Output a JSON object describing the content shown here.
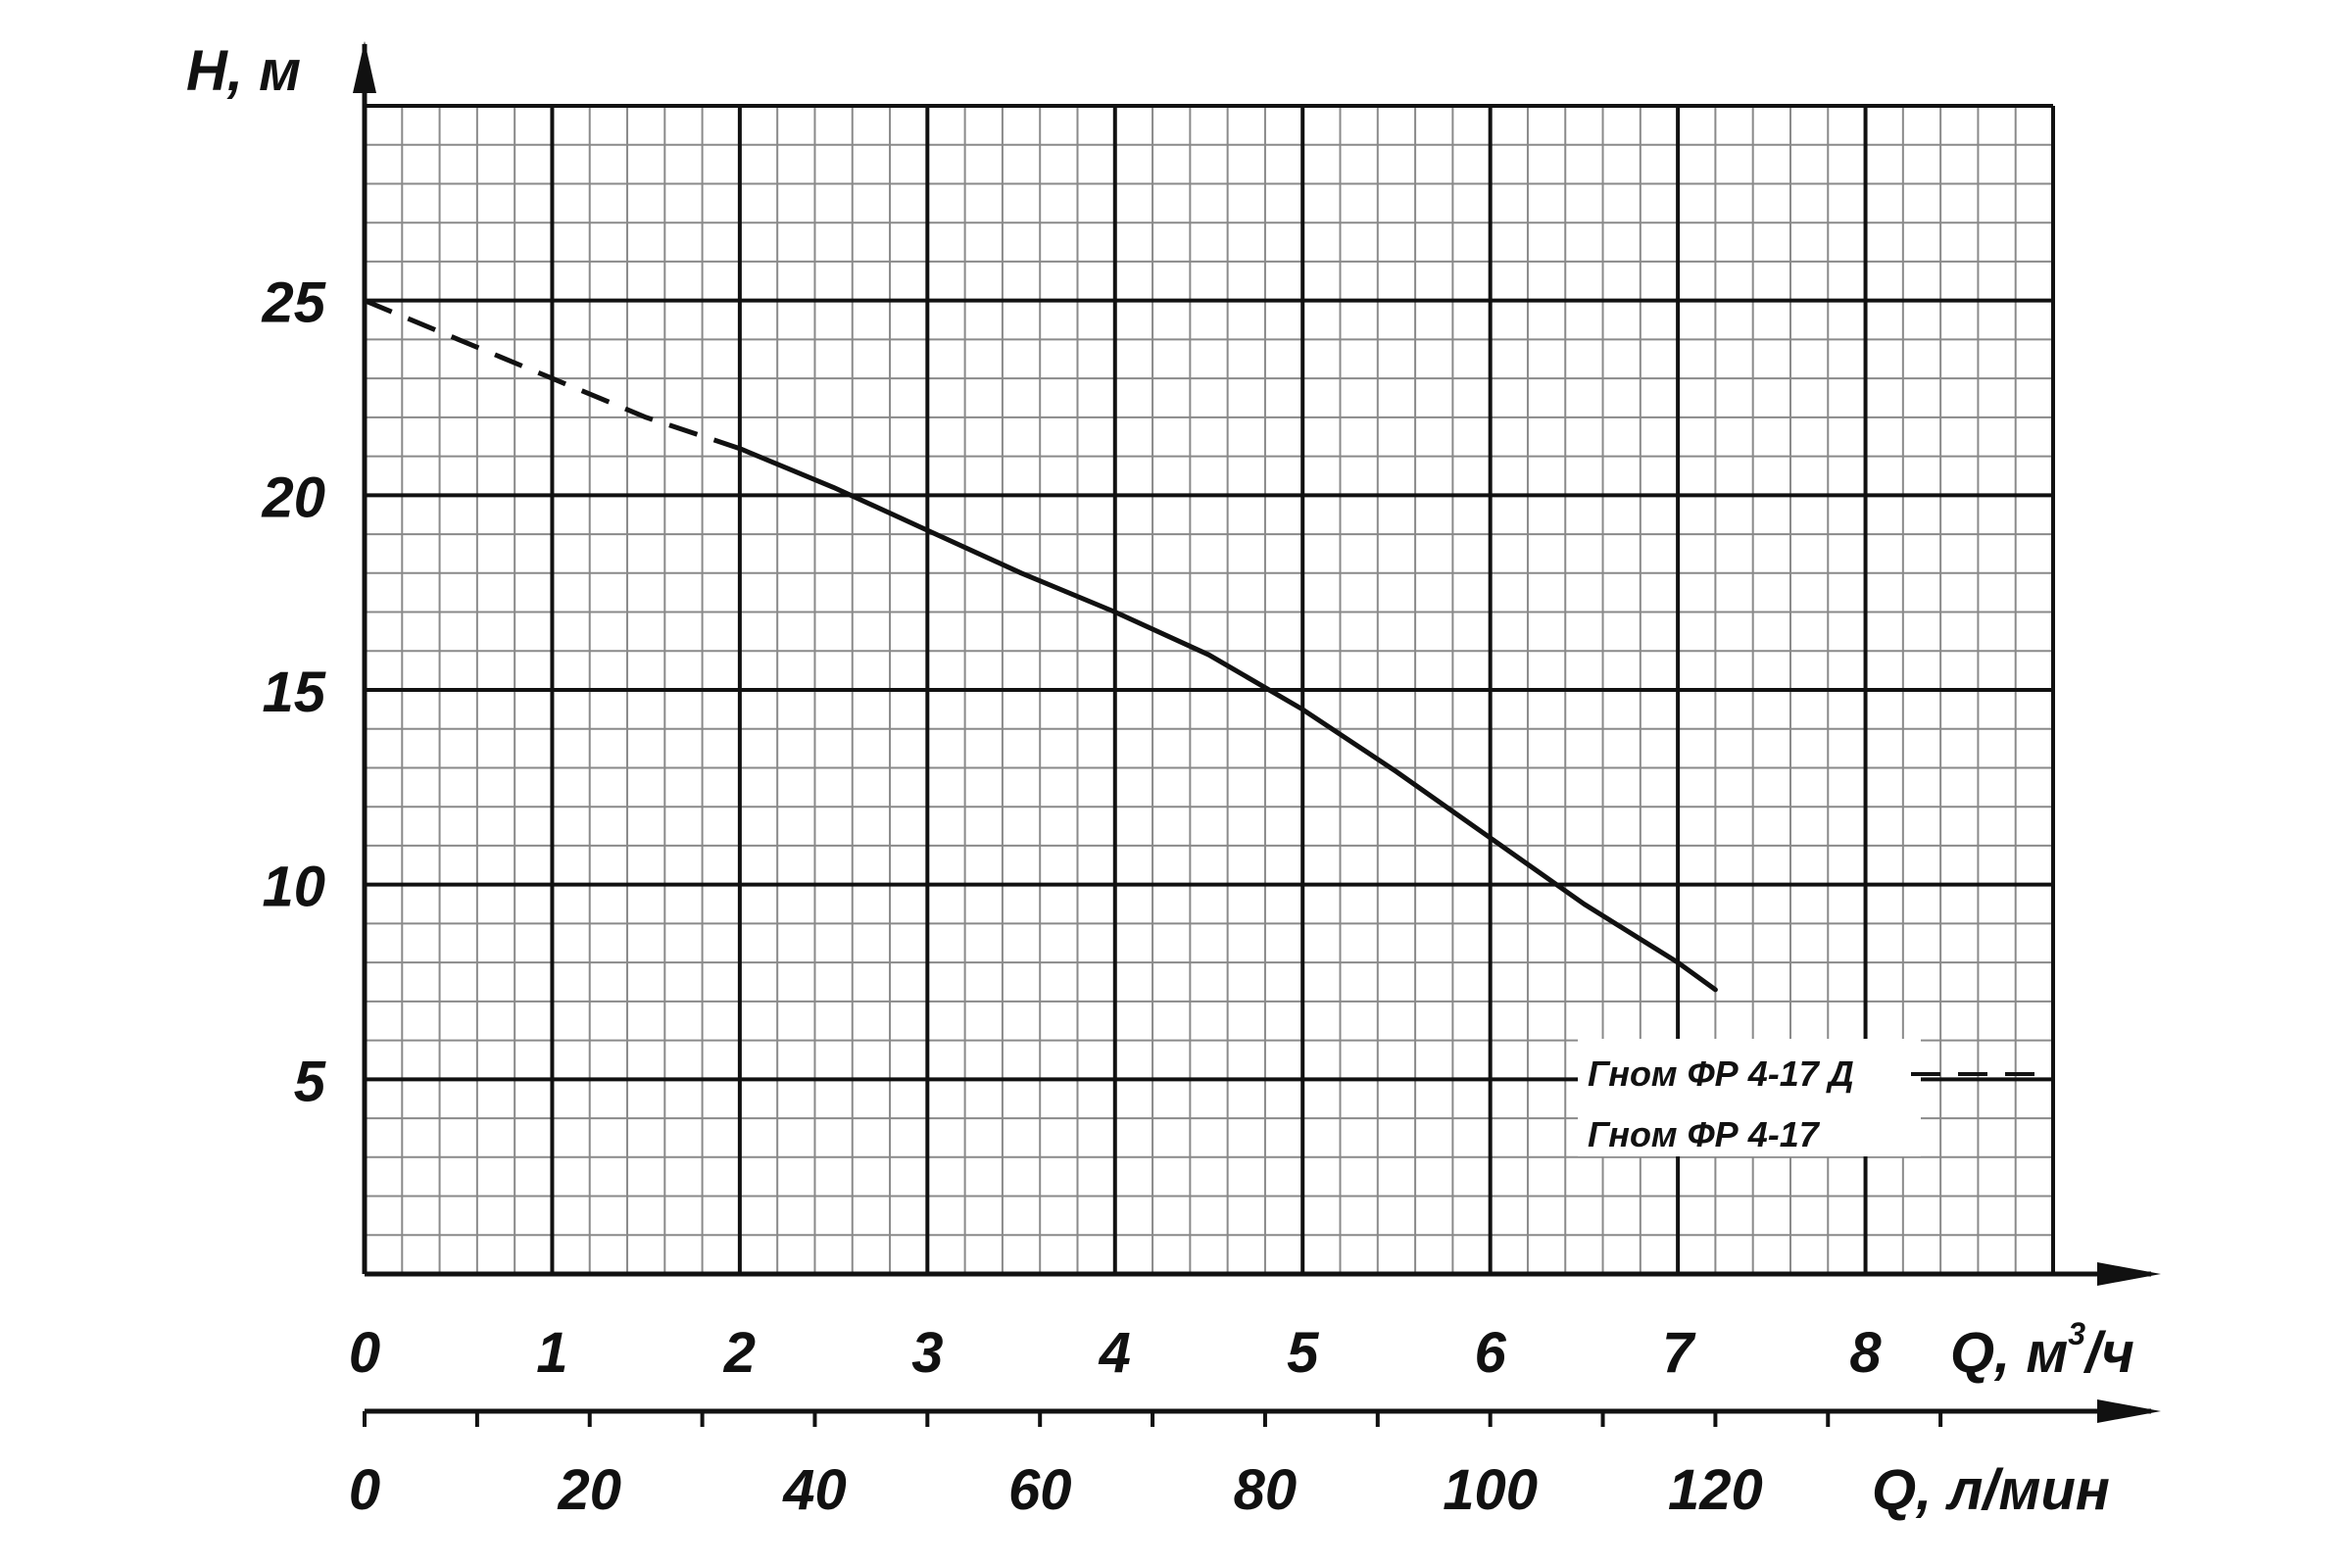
{
  "chart_data": {
    "type": "line",
    "title": "",
    "ylabel": "H, м",
    "xlabel": "Q, м",
    "xlabel_sup": "3",
    "xlabel_suffix": "/ч",
    "x2label": "Q, л/мин",
    "xlim": [
      0,
      9
    ],
    "ylim": [
      0,
      30
    ],
    "x2lim": [
      0,
      150
    ],
    "xticks": [
      0,
      1,
      2,
      3,
      4,
      5,
      6,
      7,
      8
    ],
    "yticks": [
      5,
      10,
      15,
      20,
      25
    ],
    "x2ticks": [
      0,
      20,
      40,
      60,
      80,
      100,
      120
    ],
    "x2minor": [
      10,
      30,
      50,
      70,
      90,
      110,
      130,
      140
    ],
    "grid": true,
    "legend_position": "bottom-right",
    "series": [
      {
        "name": "Гном ФР 4-17 Д",
        "style": "dashed",
        "x": [
          0,
          0.5,
          1.0,
          1.5,
          2.0
        ],
        "y": [
          25.0,
          24.0,
          23.0,
          22.0,
          21.2
        ]
      },
      {
        "name": "Гном ФР 4-17",
        "style": "solid",
        "x": [
          2.0,
          2.5,
          3.0,
          3.5,
          4.0,
          4.5,
          5.0,
          5.5,
          6.0,
          6.5,
          7.0,
          7.2
        ],
        "y": [
          21.2,
          20.2,
          19.1,
          18.0,
          17.0,
          15.9,
          14.5,
          12.9,
          11.2,
          9.5,
          8.0,
          7.3
        ]
      }
    ]
  },
  "colors": {
    "line": "#111111",
    "grid_major": "#111111",
    "grid_minor": "#8a8a8a",
    "background": "#ffffff"
  }
}
